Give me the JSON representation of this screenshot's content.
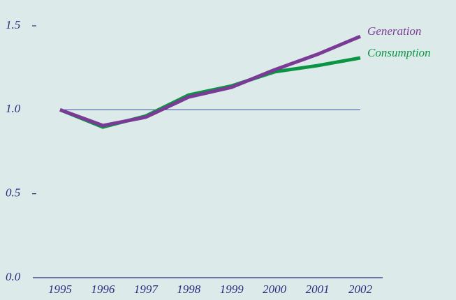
{
  "chart_data": {
    "type": "line",
    "x": [
      1995,
      1996,
      1997,
      1998,
      1999,
      2000,
      2001,
      2002
    ],
    "xlim": [
      1995,
      2002
    ],
    "xticks": [
      1995,
      1996,
      1997,
      1998,
      1999,
      2000,
      2001,
      2002
    ],
    "ylim": [
      0,
      1.5
    ],
    "yticks": [
      {
        "value": 0,
        "label": "0.0"
      },
      {
        "value": 0.5,
        "label": "0.5"
      },
      {
        "value": 1,
        "label": "1.0"
      },
      {
        "value": 1.5,
        "label": "1.5"
      }
    ],
    "reference_line": 1,
    "legend": "line-end",
    "series": [
      {
        "name": "Consumption",
        "color": "#0b9444",
        "values": [
          1.0,
          0.897,
          0.963,
          1.088,
          1.142,
          1.226,
          1.263,
          1.309
        ]
      },
      {
        "name": "Generation",
        "color": "#7a3a96",
        "values": [
          1.0,
          0.906,
          0.956,
          1.076,
          1.134,
          1.238,
          1.33,
          1.437
        ]
      }
    ]
  }
}
